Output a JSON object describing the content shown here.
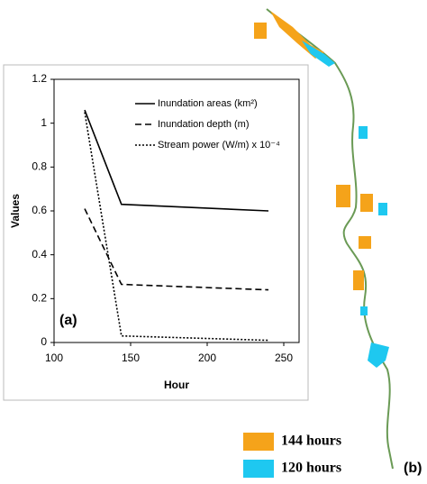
{
  "chart_data": {
    "type": "line",
    "xlabel": "Hour",
    "ylabel": "Values",
    "annotation": "(a)",
    "xlim": [
      100,
      260
    ],
    "xticks": [
      100,
      150,
      200,
      250
    ],
    "ylim": [
      0,
      1.2
    ],
    "yticks": [
      0,
      0.2,
      0.4,
      0.6,
      0.8,
      1,
      1.2
    ],
    "legend_position": "upper right",
    "series": [
      {
        "name": "Inundation areas (km²)",
        "color": "#000000",
        "style": "solid",
        "x": [
          120,
          144,
          240
        ],
        "values": [
          1.06,
          0.63,
          0.6
        ]
      },
      {
        "name": "Inundation depth (m)",
        "color": "#000000",
        "style": "dashed",
        "x": [
          120,
          144,
          240
        ],
        "values": [
          0.61,
          0.265,
          0.24
        ]
      },
      {
        "name": "Stream power (W/m) x 10⁻⁴",
        "color": "#000000",
        "style": "dotted",
        "x": [
          120,
          144,
          240
        ],
        "values": [
          1.05,
          0.03,
          0.01
        ]
      }
    ]
  },
  "map": {
    "label": "(b)",
    "legend": [
      {
        "name": "144 hours",
        "color": "#f5a31a"
      },
      {
        "name": "120 hours",
        "color": "#1ec8f0"
      }
    ]
  }
}
